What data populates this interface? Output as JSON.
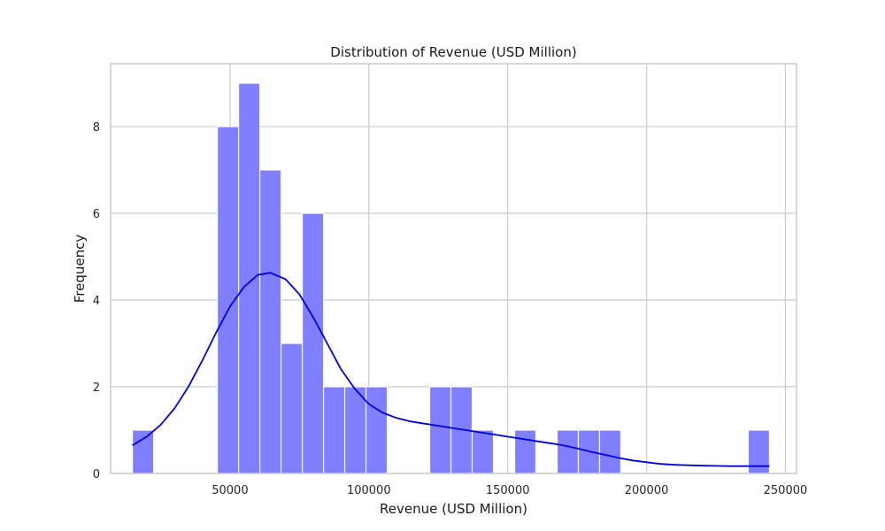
{
  "chart_data": {
    "type": "bar",
    "subtype": "histogram_with_kde",
    "title": "Distribution of Revenue (USD Million)",
    "xlabel": "Revenue (USD Million)",
    "ylabel": "Frequency",
    "xlim": [
      7000,
      254000
    ],
    "ylim": [
      0,
      9.45
    ],
    "x_ticks": [
      50000,
      100000,
      150000,
      200000,
      250000
    ],
    "y_ticks": [
      0,
      2,
      4,
      6,
      8
    ],
    "grid": true,
    "bin_width": 7647,
    "bins": [
      {
        "x0": 14850,
        "x1": 22497,
        "count": 1
      },
      {
        "x0": 45438,
        "x1": 53085,
        "count": 8
      },
      {
        "x0": 53085,
        "x1": 60732,
        "count": 9
      },
      {
        "x0": 60732,
        "x1": 68379,
        "count": 7
      },
      {
        "x0": 68379,
        "x1": 76026,
        "count": 3
      },
      {
        "x0": 76026,
        "x1": 83673,
        "count": 6
      },
      {
        "x0": 83673,
        "x1": 91320,
        "count": 2
      },
      {
        "x0": 91320,
        "x1": 98967,
        "count": 2
      },
      {
        "x0": 98967,
        "x1": 106614,
        "count": 2
      },
      {
        "x0": 121908,
        "x1": 129555,
        "count": 2
      },
      {
        "x0": 129555,
        "x1": 137202,
        "count": 2
      },
      {
        "x0": 137202,
        "x1": 144849,
        "count": 1
      },
      {
        "x0": 152496,
        "x1": 160143,
        "count": 1
      },
      {
        "x0": 167790,
        "x1": 175437,
        "count": 1
      },
      {
        "x0": 175437,
        "x1": 183084,
        "count": 1
      },
      {
        "x0": 183084,
        "x1": 190731,
        "count": 1
      },
      {
        "x0": 236613,
        "x1": 244260,
        "count": 1
      }
    ],
    "kde": {
      "x": [
        14850,
        20000,
        25000,
        30000,
        35000,
        40000,
        45000,
        50000,
        55000,
        60000,
        64500,
        70000,
        75000,
        80000,
        85000,
        90000,
        95000,
        100000,
        105000,
        110000,
        115000,
        120000,
        125000,
        130000,
        135000,
        140000,
        145000,
        150000,
        155000,
        160000,
        165000,
        170000,
        175000,
        180000,
        185000,
        190000,
        195000,
        200000,
        205000,
        210000,
        215000,
        220000,
        225000,
        230000,
        235000,
        240000,
        244260
      ],
      "y": [
        0.65,
        0.85,
        1.12,
        1.5,
        2.0,
        2.6,
        3.25,
        3.85,
        4.3,
        4.58,
        4.63,
        4.48,
        4.13,
        3.6,
        3.0,
        2.4,
        1.95,
        1.6,
        1.4,
        1.28,
        1.2,
        1.15,
        1.1,
        1.05,
        1.0,
        0.95,
        0.9,
        0.85,
        0.8,
        0.75,
        0.7,
        0.65,
        0.58,
        0.5,
        0.43,
        0.36,
        0.3,
        0.26,
        0.22,
        0.2,
        0.19,
        0.18,
        0.175,
        0.17,
        0.17,
        0.17,
        0.17
      ]
    },
    "colors": {
      "bar": "#7f7fff",
      "kde": "#0000dd"
    }
  }
}
